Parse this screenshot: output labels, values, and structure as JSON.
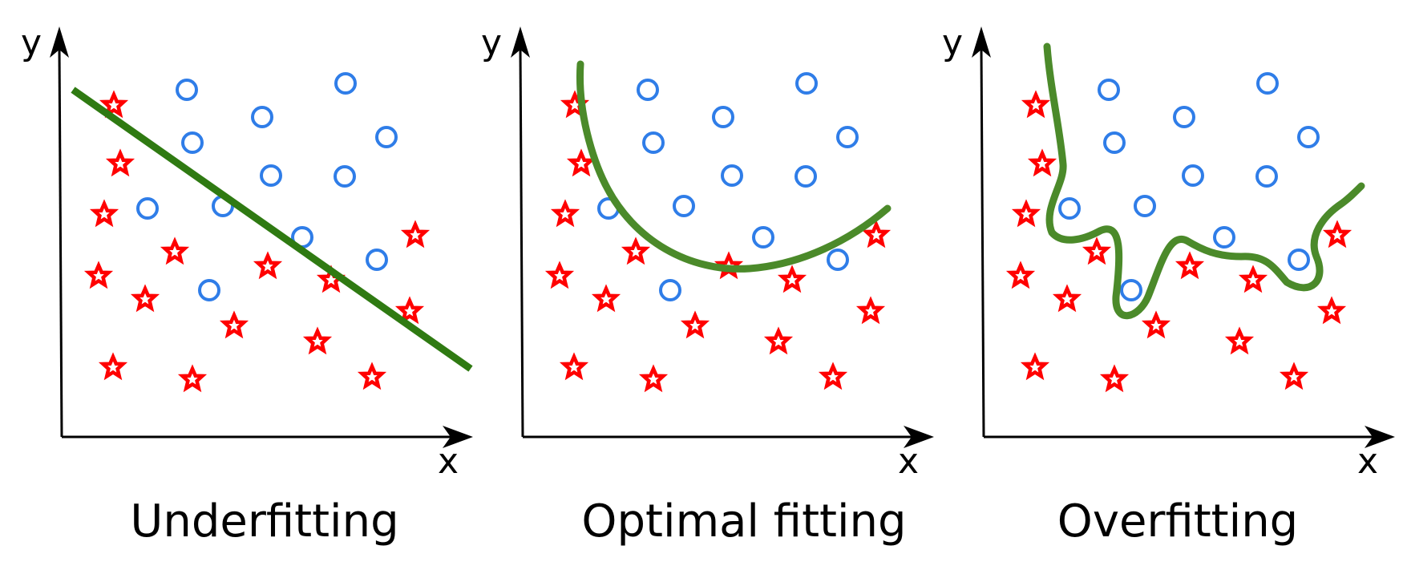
{
  "colors": {
    "star": "#ff0000",
    "circle": "#2f7de8",
    "fit_line": "#2f7a12",
    "fit_curve": "#4b8a2a",
    "axis": "#000000"
  },
  "panels": [
    {
      "id": "underfitting",
      "caption": "Underfitting",
      "x_axis_label": "x",
      "y_axis_label": "y",
      "fit_type": "straight-line"
    },
    {
      "id": "optimal",
      "caption": "Optimal fitting",
      "x_axis_label": "x",
      "y_axis_label": "y",
      "fit_type": "smooth-curve"
    },
    {
      "id": "overfitting",
      "caption": "Overfitting",
      "x_axis_label": "x",
      "y_axis_label": "y",
      "fit_type": "wiggly-curve"
    }
  ],
  "marker_types": [
    "star-icon",
    "circle-icon"
  ]
}
